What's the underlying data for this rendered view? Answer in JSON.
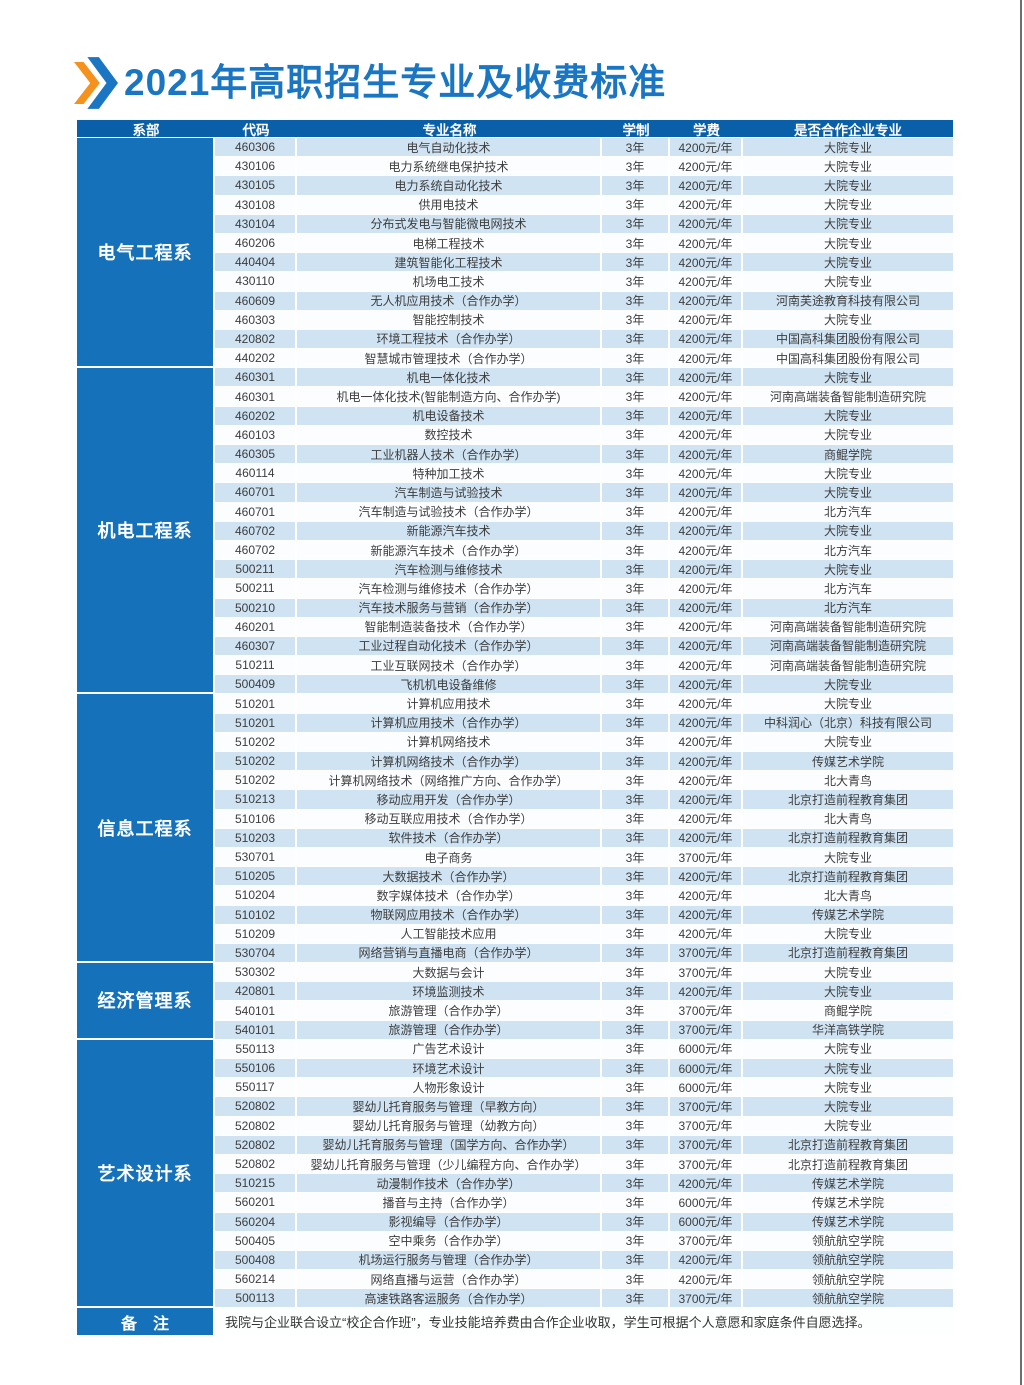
{
  "title": "2021年高职招生专业及收费标准",
  "colors": {
    "title_blue": "#1a75c2",
    "header_bg": "#0a5fa9",
    "dept_bg": "#1571ba",
    "row_blue": "#cfe3f3",
    "row_white": "#fbfdfe",
    "arrow_orange": "#f5921e",
    "arrow_blue": "#1a75c2"
  },
  "table": {
    "headers": [
      "系部",
      "代码",
      "专业名称",
      "学制",
      "学费",
      "是否合作企业专业"
    ],
    "sections": [
      {
        "dept": "电气工程系",
        "rows": [
          [
            "460306",
            "电气自动化技术",
            "3年",
            "4200元/年",
            "大院专业"
          ],
          [
            "430106",
            "电力系统继电保护技术",
            "3年",
            "4200元/年",
            "大院专业"
          ],
          [
            "430105",
            "电力系统自动化技术",
            "3年",
            "4200元/年",
            "大院专业"
          ],
          [
            "430108",
            "供用电技术",
            "3年",
            "4200元/年",
            "大院专业"
          ],
          [
            "430104",
            "分布式发电与智能微电网技术",
            "3年",
            "4200元/年",
            "大院专业"
          ],
          [
            "460206",
            "电梯工程技术",
            "3年",
            "4200元/年",
            "大院专业"
          ],
          [
            "440404",
            "建筑智能化工程技术",
            "3年",
            "4200元/年",
            "大院专业"
          ],
          [
            "430110",
            "机场电工技术",
            "3年",
            "4200元/年",
            "大院专业"
          ],
          [
            "460609",
            "无人机应用技术（合作办学）",
            "3年",
            "4200元/年",
            "河南芙途教育科技有限公司"
          ],
          [
            "460303",
            "智能控制技术",
            "3年",
            "4200元/年",
            "大院专业"
          ],
          [
            "420802",
            "环境工程技术（合作办学）",
            "3年",
            "4200元/年",
            "中国高科集团股份有限公司"
          ],
          [
            "440202",
            "智慧城市管理技术（合作办学）",
            "3年",
            "4200元/年",
            "中国高科集团股份有限公司"
          ]
        ]
      },
      {
        "dept": "机电工程系",
        "rows": [
          [
            "460301",
            "机电一体化技术",
            "3年",
            "4200元/年",
            "大院专业"
          ],
          [
            "460301",
            "机电一体化技术(智能制造方向、合作办学)",
            "3年",
            "4200元/年",
            "河南高端装备智能制造研究院"
          ],
          [
            "460202",
            "机电设备技术",
            "3年",
            "4200元/年",
            "大院专业"
          ],
          [
            "460103",
            "数控技术",
            "3年",
            "4200元/年",
            "大院专业"
          ],
          [
            "460305",
            "工业机器人技术（合作办学）",
            "3年",
            "4200元/年",
            "商鲲学院"
          ],
          [
            "460114",
            "特种加工技术",
            "3年",
            "4200元/年",
            "大院专业"
          ],
          [
            "460701",
            "汽车制造与试验技术",
            "3年",
            "4200元/年",
            "大院专业"
          ],
          [
            "460701",
            "汽车制造与试验技术（合作办学）",
            "3年",
            "4200元/年",
            "北方汽车"
          ],
          [
            "460702",
            "新能源汽车技术",
            "3年",
            "4200元/年",
            "大院专业"
          ],
          [
            "460702",
            "新能源汽车技术（合作办学）",
            "3年",
            "4200元/年",
            "北方汽车"
          ],
          [
            "500211",
            "汽车检测与维修技术",
            "3年",
            "4200元/年",
            "大院专业"
          ],
          [
            "500211",
            "汽车检测与维修技术（合作办学）",
            "3年",
            "4200元/年",
            "北方汽车"
          ],
          [
            "500210",
            "汽车技术服务与营销（合作办学）",
            "3年",
            "4200元/年",
            "北方汽车"
          ],
          [
            "460201",
            "智能制造装备技术（合作办学）",
            "3年",
            "4200元/年",
            "河南高端装备智能制造研究院"
          ],
          [
            "460307",
            "工业过程自动化技术（合作办学）",
            "3年",
            "4200元/年",
            "河南高端装备智能制造研究院"
          ],
          [
            "510211",
            "工业互联网技术（合作办学）",
            "3年",
            "4200元/年",
            "河南高端装备智能制造研究院"
          ],
          [
            "500409",
            "飞机机电设备维修",
            "3年",
            "4200元/年",
            "大院专业"
          ]
        ]
      },
      {
        "dept": "信息工程系",
        "rows": [
          [
            "510201",
            "计算机应用技术",
            "3年",
            "4200元/年",
            "大院专业"
          ],
          [
            "510201",
            "计算机应用技术（合作办学）",
            "3年",
            "4200元/年",
            "中科润心（北京）科技有限公司"
          ],
          [
            "510202",
            "计算机网络技术",
            "3年",
            "4200元/年",
            "大院专业"
          ],
          [
            "510202",
            "计算机网络技术（合作办学）",
            "3年",
            "4200元/年",
            "传媒艺术学院"
          ],
          [
            "510202",
            "计算机网络技术（网络推广方向、合作办学）",
            "3年",
            "4200元/年",
            "北大青鸟"
          ],
          [
            "510213",
            "移动应用开发（合作办学）",
            "3年",
            "4200元/年",
            "北京打造前程教育集团"
          ],
          [
            "510106",
            "移动互联应用技术（合作办学）",
            "3年",
            "4200元/年",
            "北大青鸟"
          ],
          [
            "510203",
            "软件技术（合作办学）",
            "3年",
            "4200元/年",
            "北京打造前程教育集团"
          ],
          [
            "530701",
            "电子商务",
            "3年",
            "3700元/年",
            "大院专业"
          ],
          [
            "510205",
            "大数据技术（合作办学）",
            "3年",
            "4200元/年",
            "北京打造前程教育集团"
          ],
          [
            "510204",
            "数字媒体技术（合作办学）",
            "3年",
            "4200元/年",
            "北大青鸟"
          ],
          [
            "510102",
            "物联网应用技术（合作办学）",
            "3年",
            "4200元/年",
            "传媒艺术学院"
          ],
          [
            "510209",
            "人工智能技术应用",
            "3年",
            "4200元/年",
            "大院专业"
          ],
          [
            "530704",
            "网络营销与直播电商（合作办学）",
            "3年",
            "3700元/年",
            "北京打造前程教育集团"
          ]
        ]
      },
      {
        "dept": "经济管理系",
        "rows": [
          [
            "530302",
            "大数据与会计",
            "3年",
            "3700元/年",
            "大院专业"
          ],
          [
            "420801",
            "环境监测技术",
            "3年",
            "4200元/年",
            "大院专业"
          ],
          [
            "540101",
            "旅游管理（合作办学）",
            "3年",
            "3700元/年",
            "商鲲学院"
          ],
          [
            "540101",
            "旅游管理（合作办学）",
            "3年",
            "3700元/年",
            "华洋高铁学院"
          ]
        ]
      },
      {
        "dept": "艺术设计系",
        "rows": [
          [
            "550113",
            "广告艺术设计",
            "3年",
            "6000元/年",
            "大院专业"
          ],
          [
            "550106",
            "环境艺术设计",
            "3年",
            "6000元/年",
            "大院专业"
          ],
          [
            "550117",
            "人物形象设计",
            "3年",
            "6000元/年",
            "大院专业"
          ],
          [
            "520802",
            "婴幼儿托育服务与管理（早教方向）",
            "3年",
            "3700元/年",
            "大院专业"
          ],
          [
            "520802",
            "婴幼儿托育服务与管理（幼教方向）",
            "3年",
            "3700元/年",
            "大院专业"
          ],
          [
            "520802",
            "婴幼儿托育服务与管理（国学方向、合作办学）",
            "3年",
            "3700元/年",
            "北京打造前程教育集团"
          ],
          [
            "520802",
            "婴幼儿托育服务与管理（少儿编程方向、合作办学）",
            "3年",
            "3700元/年",
            "北京打造前程教育集团"
          ],
          [
            "510215",
            "动漫制作技术（合作办学）",
            "3年",
            "4200元/年",
            "传媒艺术学院"
          ],
          [
            "560201",
            "播音与主持（合作办学）",
            "3年",
            "6000元/年",
            "传媒艺术学院"
          ],
          [
            "560204",
            "影视编导（合作办学）",
            "3年",
            "6000元/年",
            "传媒艺术学院"
          ],
          [
            "500405",
            "空中乘务（合作办学）",
            "3年",
            "3700元/年",
            "领航航空学院"
          ],
          [
            "500408",
            "机场运行服务与管理（合作办学）",
            "3年",
            "4200元/年",
            "领航航空学院"
          ],
          [
            "560214",
            "网络直播与运营（合作办学）",
            "3年",
            "4200元/年",
            "领航航空学院"
          ],
          [
            "500113",
            "高速铁路客运服务（合作办学）",
            "3年",
            "3700元/年",
            "领航航空学院"
          ]
        ]
      }
    ]
  },
  "note": {
    "label": "备　注",
    "text": "我院与企业联合设立“校企合作班”，专业技能培养费由合作企业收取，学生可根据个人意愿和家庭条件自愿选择。"
  }
}
